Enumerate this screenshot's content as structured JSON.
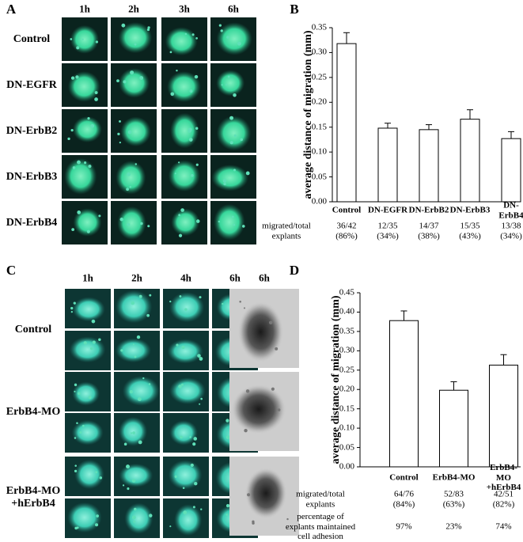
{
  "panels": {
    "a": {
      "label": "A",
      "columns": [
        "1h",
        "2h",
        "3h",
        "6h"
      ],
      "rows": [
        "Control",
        "DN-EGFR",
        "DN-ErbB2",
        "DN-ErbB3",
        "DN-ErbB4"
      ]
    },
    "c": {
      "label": "C",
      "columns": [
        "1h",
        "2h",
        "4h",
        "6h",
        "6h"
      ],
      "rows": [
        "Control",
        "ErbB4-MO",
        "ErbB4-MO\n+hErbB4"
      ]
    }
  },
  "chart_data": [
    {
      "panel_label": "B",
      "type": "bar",
      "y_label": "average distance of migration (mm)",
      "categories": [
        "Control",
        "DN-EGFR",
        "DN-ErbB2",
        "DN-ErbB3",
        "DN-ErbB4"
      ],
      "values": [
        0.318,
        0.148,
        0.145,
        0.166,
        0.127
      ],
      "errors": [
        0.022,
        0.01,
        0.01,
        0.019,
        0.014
      ],
      "color": "#ffffff",
      "ylim": [
        0,
        0.35
      ],
      "yticks": [
        {
          "value": 0,
          "label": "0.00"
        },
        {
          "value": 0.05,
          "label": "0.05"
        },
        {
          "value": 0.1,
          "label": "0.10"
        },
        {
          "value": 0.15,
          "label": "0.15"
        },
        {
          "value": 0.2,
          "label": "0.20"
        },
        {
          "value": 0.25,
          "label": "0.25"
        },
        {
          "value": 0.3,
          "label": "0.30"
        },
        {
          "value": 0.35,
          "label": "0.35"
        }
      ],
      "table": [
        {
          "label": "migrated/total\nexplants",
          "cells": [
            "36/42\n(86%)",
            "12/35\n(34%)",
            "14/37\n(38%)",
            "15/35\n(43%)",
            "13/38\n(34%)"
          ]
        }
      ]
    },
    {
      "panel_label": "D",
      "type": "bar",
      "y_label": "average distance of migration (mm)",
      "categories": [
        "Control",
        "ErbB4-MO",
        "ErbB4-MO\n+hErbB4"
      ],
      "values": [
        0.378,
        0.198,
        0.263
      ],
      "errors": [
        0.025,
        0.022,
        0.027
      ],
      "color": "#ffffff",
      "ylim": [
        0,
        0.45
      ],
      "yticks": [
        {
          "value": 0,
          "label": "0.00"
        },
        {
          "value": 0.05,
          "label": "0.05"
        },
        {
          "value": 0.1,
          "label": "0.10"
        },
        {
          "value": 0.15,
          "label": "0.15"
        },
        {
          "value": 0.2,
          "label": "0.20"
        },
        {
          "value": 0.25,
          "label": "0.25"
        },
        {
          "value": 0.3,
          "label": "0.30"
        },
        {
          "value": 0.35,
          "label": "0.35"
        },
        {
          "value": 0.4,
          "label": "0.40"
        },
        {
          "value": 0.45,
          "label": "0.45"
        }
      ],
      "table": [
        {
          "label": "migrated/total\nexplants",
          "cells": [
            "64/76\n(84%)",
            "52/83\n(63%)",
            "42/51\n(82%)"
          ]
        },
        {
          "label": "percentage of\nexplants maintained\ncell adhesion",
          "cells": [
            "97%",
            "23%",
            "74%"
          ]
        }
      ]
    }
  ]
}
